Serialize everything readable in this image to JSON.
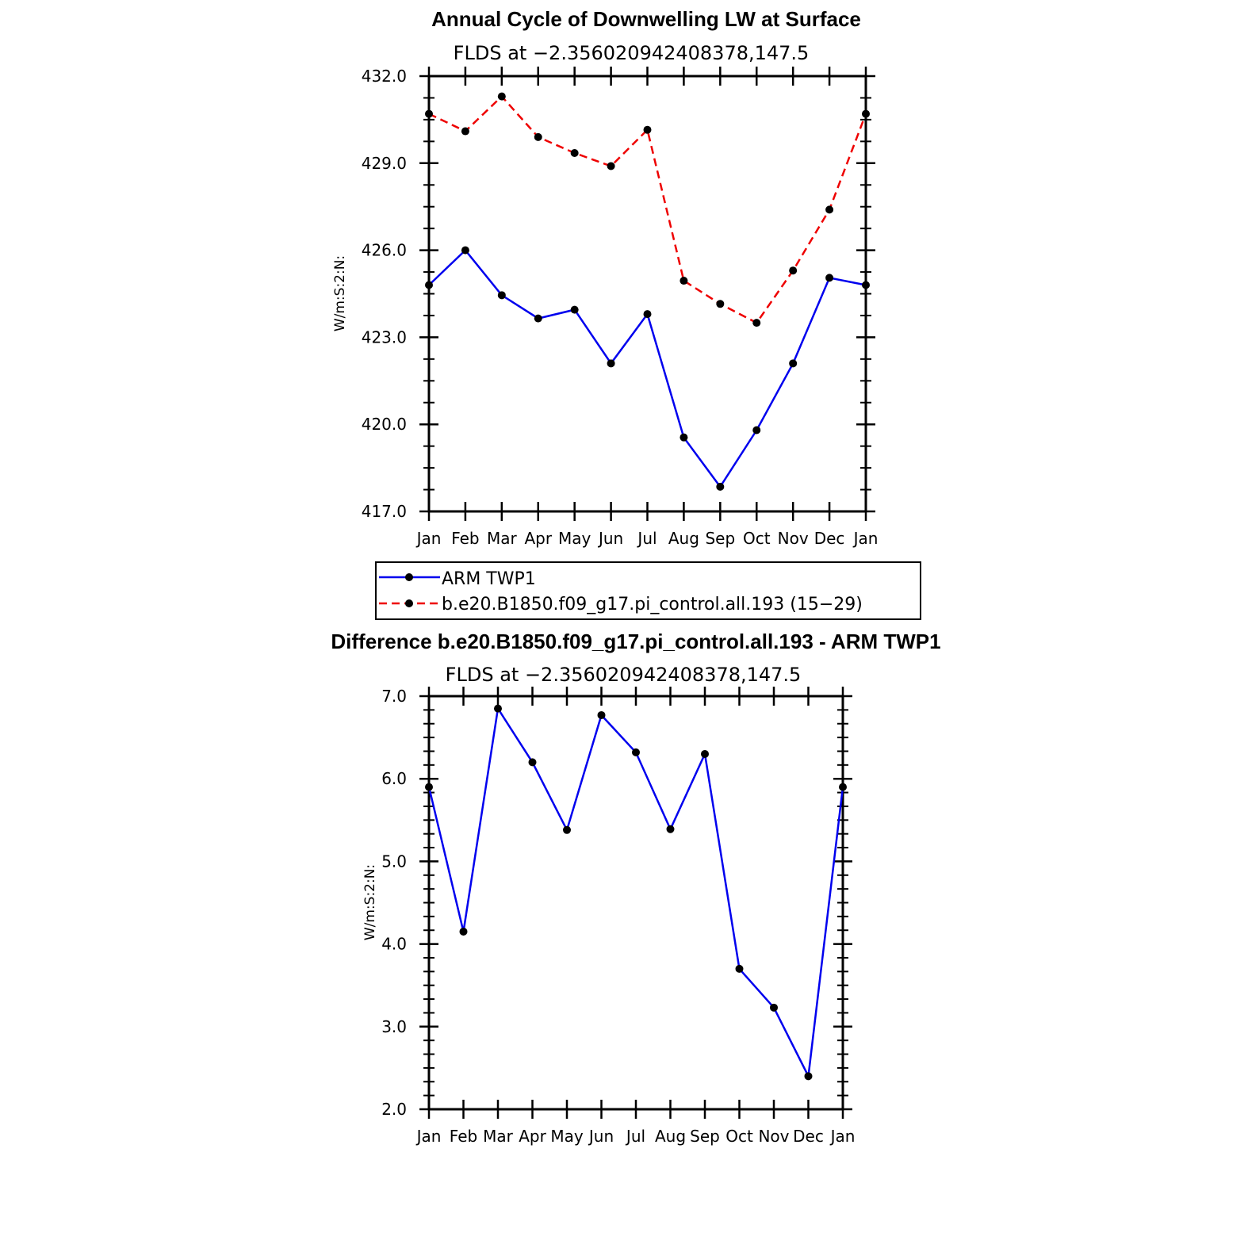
{
  "chart_data": [
    {
      "type": "line",
      "title": "Annual Cycle of Downwelling LW at Surface",
      "subtitle": "FLDS at −2.356020942408378,147.5",
      "ylabel": "W/m:S:2:N:",
      "xlabel": "",
      "categories": [
        "Jan",
        "Feb",
        "Mar",
        "Apr",
        "May",
        "Jun",
        "Jul",
        "Aug",
        "Sep",
        "Oct",
        "Nov",
        "Dec",
        "Jan"
      ],
      "ylim": [
        417.0,
        432.0
      ],
      "yticks": [
        "417.0",
        "420.0",
        "423.0",
        "426.0",
        "429.0",
        "432.0"
      ],
      "ytick_values": [
        417,
        420,
        423,
        426,
        429,
        432
      ],
      "series": [
        {
          "name": "ARM TWP1",
          "color": "#0000ee",
          "dash": "solid",
          "values": [
            424.8,
            426.0,
            424.45,
            423.65,
            423.95,
            422.1,
            423.8,
            419.55,
            417.85,
            419.8,
            422.1,
            425.05,
            424.8
          ]
        },
        {
          "name": "b.e20.B1850.f09_g17.pi_control.all.193 (15−29)",
          "color": "#ee0000",
          "dash": "dashed",
          "values": [
            430.7,
            430.1,
            431.3,
            429.9,
            429.35,
            428.9,
            430.15,
            424.95,
            424.15,
            423.5,
            425.3,
            427.4,
            430.7
          ]
        }
      ],
      "legend": "bottom",
      "grid": false
    },
    {
      "type": "line",
      "title": "Difference b.e20.B1850.f09_g17.pi_control.all.193 - ARM TWP1",
      "subtitle": "FLDS at −2.356020942408378,147.5",
      "ylabel": "W/m:S:2:N:",
      "xlabel": "",
      "categories": [
        "Jan",
        "Feb",
        "Mar",
        "Apr",
        "May",
        "Jun",
        "Jul",
        "Aug",
        "Sep",
        "Oct",
        "Nov",
        "Dec",
        "Jan"
      ],
      "ylim": [
        2.0,
        7.0
      ],
      "yticks": [
        "2.0",
        "3.0",
        "4.0",
        "5.0",
        "6.0",
        "7.0"
      ],
      "ytick_values": [
        2,
        3,
        4,
        5,
        6,
        7
      ],
      "series": [
        {
          "color": "#0000ee",
          "dash": "solid",
          "values": [
            5.9,
            4.15,
            6.85,
            6.2,
            5.38,
            6.77,
            6.32,
            5.39,
            6.3,
            3.7,
            3.23,
            2.4,
            5.9
          ]
        }
      ],
      "grid": false
    }
  ]
}
